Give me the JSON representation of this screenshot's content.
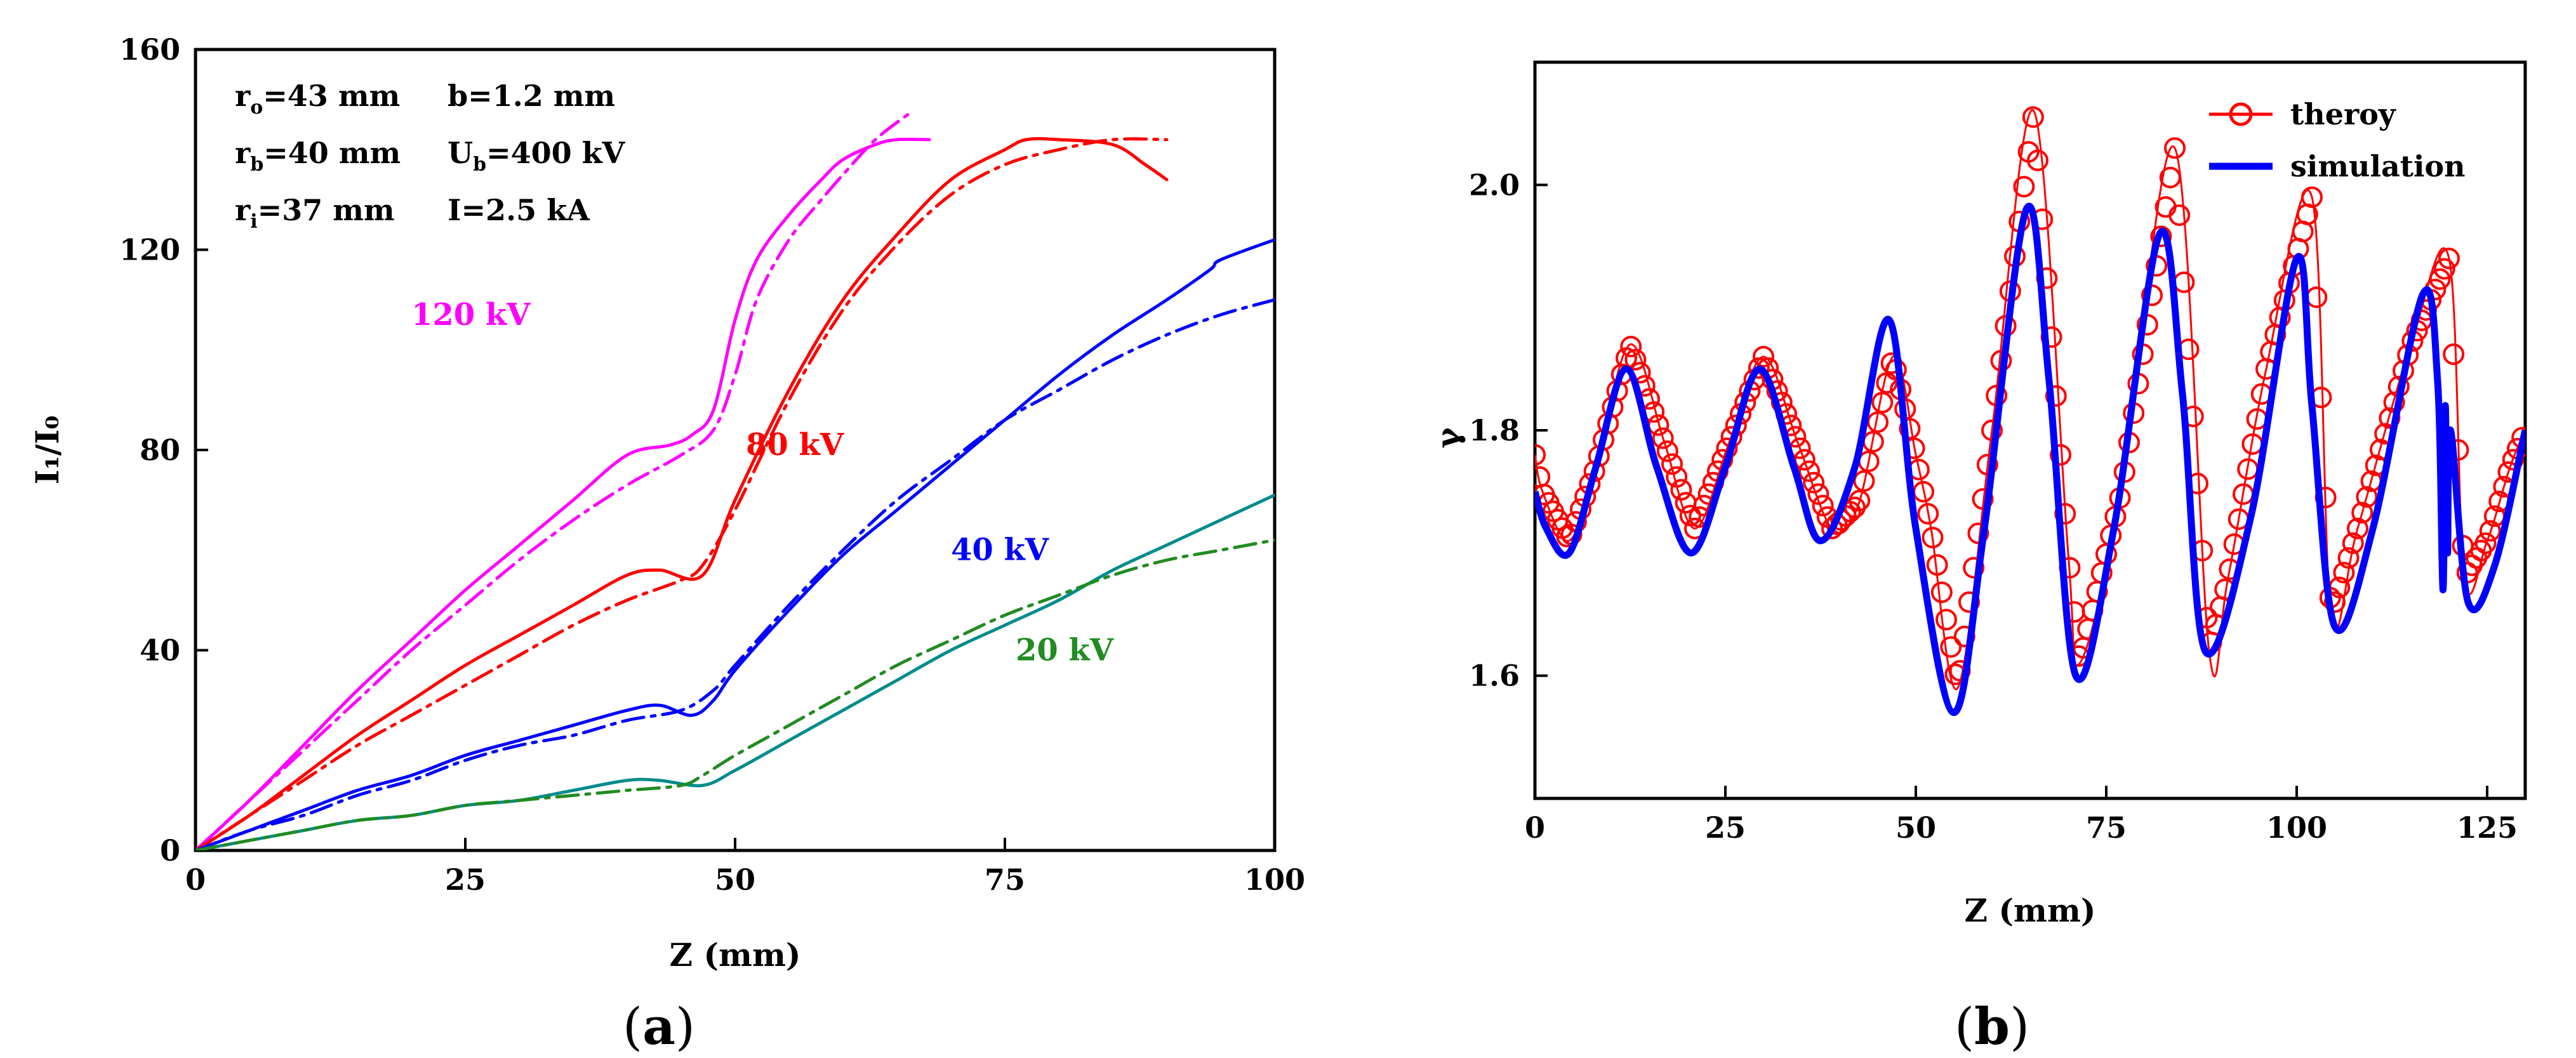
{
  "chart_data": [
    {
      "type": "line",
      "panel_label": "a",
      "xlabel": "Z (mm)",
      "ylabel": "I₁/I₀",
      "xlim": [
        0,
        100
      ],
      "ylim": [
        0,
        160
      ],
      "xticks": [
        0,
        25,
        50,
        75,
        100
      ],
      "yticks": [
        0,
        40,
        80,
        120,
        160
      ],
      "parameters": {
        "r0": {
          "sym": "r",
          "sub": "o",
          "value": "=43 mm"
        },
        "b": "b=1.2 mm",
        "rb": {
          "sym": "r",
          "sub": "b",
          "value": "=40 mm"
        },
        "Ub": {
          "sym": "U",
          "sub": "b",
          "value": "=400 kV"
        },
        "ri": {
          "sym": "r",
          "sub": "i",
          "value": "=37 mm"
        },
        "I": "I=2.5 kA"
      },
      "series": [
        {
          "name": "120 kV",
          "color": "#ff00ff",
          "style": "solid",
          "x": [
            0,
            5,
            10,
            15,
            20,
            25,
            30,
            35,
            40,
            44,
            46,
            48,
            50,
            52,
            55,
            58,
            60,
            63,
            65,
            68
          ],
          "y": [
            0,
            10,
            21,
            32,
            42,
            52,
            61,
            70,
            79,
            81,
            83,
            88,
            106,
            118,
            127,
            134,
            138,
            141,
            142,
            142
          ]
        },
        {
          "name": "120 kV",
          "color": "#ff00ff",
          "style": "dashdot",
          "x": [
            0,
            5,
            10,
            15,
            20,
            25,
            30,
            35,
            40,
            45,
            48,
            50,
            52,
            55,
            58,
            60,
            63,
            66
          ],
          "y": [
            0,
            10,
            20,
            30,
            40,
            49,
            58,
            66,
            73,
            79,
            84,
            95,
            110,
            122,
            130,
            135,
            142,
            147
          ]
        },
        {
          "name": "80 kV",
          "color": "#ff0000",
          "style": "solid",
          "x": [
            0,
            5,
            10,
            15,
            20,
            25,
            30,
            35,
            40,
            43,
            47,
            50,
            55,
            60,
            65,
            70,
            75,
            77,
            80,
            85,
            88,
            90
          ],
          "y": [
            0,
            7,
            15,
            23,
            30,
            37,
            43,
            49,
            55,
            56,
            55,
            70,
            92,
            110,
            123,
            134,
            140,
            142,
            142,
            141,
            137,
            134
          ]
        },
        {
          "name": "80 kV",
          "color": "#ff0000",
          "style": "dashdot",
          "x": [
            0,
            5,
            10,
            15,
            20,
            25,
            30,
            35,
            40,
            45,
            47,
            50,
            55,
            60,
            65,
            70,
            75,
            80,
            85,
            90
          ],
          "y": [
            0,
            7,
            14,
            21,
            27,
            33,
            39,
            45,
            50,
            54,
            57,
            68,
            90,
            108,
            121,
            131,
            137,
            140,
            142,
            142
          ]
        },
        {
          "name": "40 kV",
          "color": "#0000ff",
          "style": "solid",
          "x": [
            0,
            5,
            10,
            15,
            20,
            25,
            30,
            35,
            40,
            43,
            46,
            48,
            50,
            55,
            60,
            65,
            70,
            75,
            80,
            85,
            90,
            94,
            95,
            100
          ],
          "y": [
            0,
            4,
            8,
            12,
            15,
            19,
            22,
            25,
            28,
            29,
            27,
            30,
            36,
            48,
            59,
            68,
            77,
            86,
            95,
            103,
            110,
            116,
            118,
            122
          ]
        },
        {
          "name": "40 kV",
          "color": "#0000ff",
          "style": "dashdot",
          "x": [
            0,
            5,
            10,
            15,
            20,
            25,
            30,
            35,
            40,
            45,
            48,
            50,
            55,
            60,
            65,
            70,
            75,
            80,
            85,
            90,
            95,
            100
          ],
          "y": [
            0,
            4,
            7,
            11,
            14,
            18,
            21,
            23,
            26,
            28,
            32,
            37,
            49,
            60,
            70,
            78,
            86,
            92,
            98,
            103,
            107,
            110
          ]
        },
        {
          "name": "20 kV",
          "color": "#008b8b",
          "style": "solid",
          "x": [
            0,
            5,
            10,
            15,
            20,
            25,
            30,
            35,
            40,
            43,
            47,
            50,
            55,
            60,
            65,
            70,
            75,
            80,
            85,
            90,
            95,
            100
          ],
          "y": [
            0,
            2,
            4,
            6,
            7,
            9,
            10,
            12,
            14,
            14,
            13,
            16,
            22,
            28,
            34,
            40,
            45,
            50,
            56,
            61,
            66,
            71
          ]
        },
        {
          "name": "20 kV",
          "color": "#228b22",
          "style": "dashdot",
          "x": [
            0,
            5,
            10,
            15,
            20,
            25,
            30,
            35,
            40,
            45,
            47,
            50,
            55,
            60,
            65,
            70,
            75,
            80,
            85,
            90,
            95,
            100
          ],
          "y": [
            0,
            2,
            4,
            6,
            7,
            9,
            10,
            11,
            12,
            13,
            15,
            19,
            25,
            31,
            37,
            42,
            47,
            51,
            55,
            58,
            60,
            62
          ]
        }
      ],
      "annotations": [
        {
          "text": "120 kV",
          "color": "#ff00ff",
          "x": 20,
          "y": 105
        },
        {
          "text": "80 kV",
          "color": "#ff0000",
          "x": 51,
          "y": 79
        },
        {
          "text": "40 kV",
          "color": "#0000ff",
          "x": 70,
          "y": 58
        },
        {
          "text": "20 kV",
          "color": "#228b22",
          "x": 76,
          "y": 38
        }
      ]
    },
    {
      "type": "line",
      "panel_label": "b",
      "xlabel": "Z (mm)",
      "ylabel": "γ",
      "xlim": [
        0,
        130
      ],
      "ylim": [
        1.5,
        2.1
      ],
      "xticks": [
        0,
        25,
        50,
        75,
        100,
        125
      ],
      "yticks": [
        1.6,
        1.8,
        2.0
      ],
      "legend_position": "top-right",
      "series": [
        {
          "name": "theroy",
          "color": "#ff0000",
          "marker": "open-circle",
          "x": [
            0,
            1,
            4.5,
            8,
            12.5,
            17,
            21,
            25.5,
            30,
            34.5,
            39,
            42.5,
            47,
            50,
            52,
            55.5,
            60,
            65.5,
            70,
            71.5,
            77,
            84,
            88.5,
            91,
            96,
            102,
            104.5,
            108,
            115,
            120,
            122,
            125,
            128,
            130
          ],
          "y": [
            1.78,
            1.75,
            1.71,
            1.77,
            1.87,
            1.79,
            1.72,
            1.79,
            1.86,
            1.79,
            1.72,
            1.74,
            1.86,
            1.78,
            1.72,
            1.59,
            1.8,
            2.06,
            1.7,
            1.61,
            1.75,
            2.03,
            1.62,
            1.68,
            1.85,
            1.99,
            1.65,
            1.72,
            1.87,
            1.94,
            1.68,
            1.71,
            1.77,
            1.8
          ]
        },
        {
          "name": "simulation",
          "color": "#0000ff",
          "marker": "none",
          "x": [
            0,
            1.5,
            4.5,
            8,
            12,
            16,
            20.5,
            25,
            29.5,
            34,
            37.5,
            42,
            46.5,
            50,
            55,
            59,
            64.5,
            67.5,
            71,
            76,
            82,
            85,
            88,
            94,
            100,
            102,
            105,
            110,
            116.5,
            118.5,
            119.2,
            119.5,
            119.8,
            120.2,
            122.5,
            126,
            130
          ],
          "y": [
            1.75,
            1.72,
            1.7,
            1.77,
            1.85,
            1.77,
            1.7,
            1.77,
            1.85,
            1.77,
            1.71,
            1.77,
            1.89,
            1.72,
            1.57,
            1.72,
            1.98,
            1.84,
            1.6,
            1.72,
            1.96,
            1.83,
            1.62,
            1.73,
            1.94,
            1.82,
            1.64,
            1.72,
            1.91,
            1.84,
            1.67,
            1.82,
            1.7,
            1.8,
            1.66,
            1.69,
            1.8
          ]
        }
      ]
    }
  ]
}
